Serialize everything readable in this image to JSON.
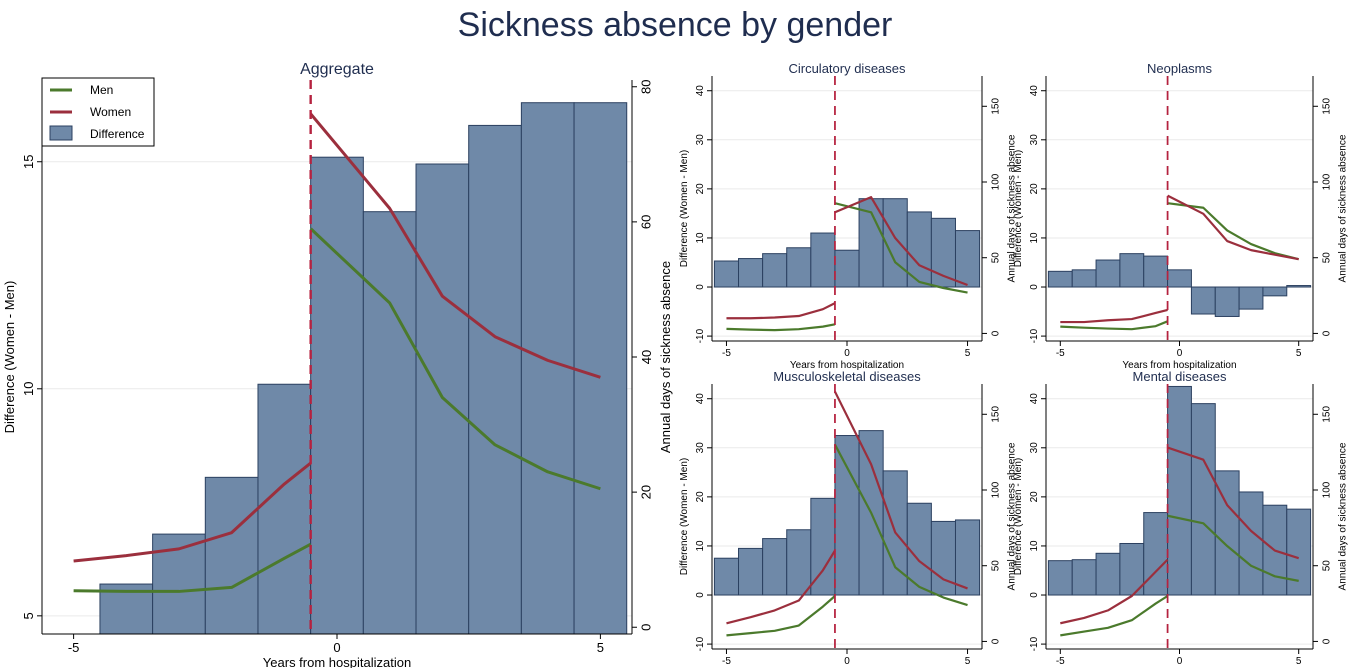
{
  "title": "Sickness absence by gender",
  "colors": {
    "men": "#4b7a2c",
    "women": "#9b2f3d",
    "bar": "#6f89a8",
    "bar_edge": "#2b4060",
    "vline": "#b5223f"
  },
  "legend": {
    "men": "Men",
    "women": "Women",
    "difference": "Difference"
  },
  "chart_data": [
    {
      "type": "bar+line",
      "title": "Aggregate",
      "xlabel": "Years from hospitalization",
      "ylabel_left": "Difference (Women - Men)",
      "ylabel_right": "Annual days of sickness absence",
      "xlim": [
        -5.6,
        5.6
      ],
      "ylim_left": [
        4.6,
        16.8
      ],
      "ylim_right": [
        -1,
        81
      ],
      "xticks": [
        -5,
        0,
        5
      ],
      "yticks_left": [
        5,
        10,
        15
      ],
      "yticks_right": [
        0,
        20,
        40,
        60,
        80
      ],
      "vline_x": -0.5,
      "legend_position": "top-left",
      "bars": {
        "x": [
          -4,
          -3,
          -2,
          -1,
          0,
          1,
          2,
          3,
          4,
          5
        ],
        "values": [
          5.7,
          6.8,
          8.05,
          10.1,
          15.1,
          13.9,
          14.95,
          15.8,
          16.3,
          16.3
        ]
      },
      "series": [
        {
          "name": "Men",
          "segments": [
            {
              "x": [
                -5,
                -4,
                -3,
                -2,
                -1,
                -0.5
              ],
              "y": [
                5.4,
                5.3,
                5.3,
                5.9,
                10.2,
                12.3
              ]
            },
            {
              "x": [
                -0.5,
                1,
                2,
                3,
                4,
                5
              ],
              "y": [
                59,
                48,
                34,
                27,
                23,
                20.5
              ]
            }
          ]
        },
        {
          "name": "Women",
          "segments": [
            {
              "x": [
                -5,
                -4,
                -3,
                -2,
                -1,
                -0.5
              ],
              "y": [
                9.8,
                10.6,
                11.6,
                14,
                21.2,
                24.3
              ]
            },
            {
              "x": [
                -0.5,
                1,
                2,
                3,
                4,
                5
              ],
              "y": [
                76,
                62,
                49,
                43,
                39.5,
                37
              ]
            }
          ]
        }
      ]
    },
    {
      "type": "bar+line",
      "title": "Circulatory diseases",
      "xlabel": "Years from hospitalization",
      "ylabel_left": "Difference (Women - Men)",
      "ylabel_right": "Annual days of sickness absence",
      "xlim": [
        -5.6,
        5.6
      ],
      "ylim_left": [
        -11,
        43
      ],
      "ylim_right": [
        -5,
        170
      ],
      "xticks": [
        -5,
        0,
        5
      ],
      "yticks_left": [
        -10,
        0,
        10,
        20,
        30,
        40
      ],
      "yticks_right": [
        0,
        50,
        100,
        150
      ],
      "vline_x": -0.5,
      "bars": {
        "x": [
          -5,
          -4,
          -3,
          -2,
          -1,
          0,
          1,
          2,
          3,
          4,
          5
        ],
        "values": [
          5.3,
          5.8,
          6.8,
          8,
          11,
          7.5,
          18,
          18,
          15.3,
          14,
          11.5
        ]
      },
      "series": [
        {
          "name": "Men",
          "segments": [
            {
              "x": [
                -5,
                -4,
                -3,
                -2,
                -1,
                -0.5
              ],
              "y": [
                3,
                2.5,
                2.2,
                2.8,
                4.5,
                6
              ]
            },
            {
              "x": [
                -0.5,
                1,
                2,
                3,
                4,
                5
              ],
              "y": [
                86,
                80,
                47,
                34,
                30,
                27
              ]
            }
          ]
        },
        {
          "name": "Women",
          "segments": [
            {
              "x": [
                -5,
                -4,
                -3,
                -2,
                -1,
                -0.5
              ],
              "y": [
                10,
                10,
                10.5,
                11.5,
                16,
                20
              ]
            },
            {
              "x": [
                -0.5,
                1,
                2,
                3,
                4,
                5
              ],
              "y": [
                80,
                90,
                63,
                45,
                38,
                32
              ]
            }
          ]
        }
      ]
    },
    {
      "type": "bar+line",
      "title": "Neoplasms",
      "xlabel": "Years from hospitalization",
      "ylabel_left": "Difference (Women - Men)",
      "ylabel_right": "Annual days of sickness absence",
      "xlim": [
        -5.6,
        5.6
      ],
      "ylim_left": [
        -11,
        43
      ],
      "ylim_right": [
        -5,
        170
      ],
      "xticks": [
        -5,
        0,
        5
      ],
      "yticks_left": [
        -10,
        0,
        10,
        20,
        30,
        40
      ],
      "yticks_right": [
        0,
        50,
        100,
        150
      ],
      "vline_x": -0.5,
      "bars": {
        "x": [
          -5,
          -4,
          -3,
          -2,
          -1,
          0,
          1,
          2,
          3,
          4,
          5
        ],
        "values": [
          3.2,
          3.5,
          5.5,
          6.8,
          6.3,
          3.5,
          -5.5,
          -6,
          -4.5,
          -1.8,
          0.3
        ]
      },
      "series": [
        {
          "name": "Men",
          "segments": [
            {
              "x": [
                -5,
                -4,
                -3,
                -2,
                -1,
                -0.5
              ],
              "y": [
                4.5,
                3.8,
                3.2,
                2.8,
                4.8,
                8
              ]
            },
            {
              "x": [
                -0.5,
                1,
                2,
                3,
                4,
                5
              ],
              "y": [
                86,
                83,
                68,
                59,
                53,
                49
              ]
            }
          ]
        },
        {
          "name": "Women",
          "segments": [
            {
              "x": [
                -5,
                -4,
                -3,
                -2,
                -1,
                -0.5
              ],
              "y": [
                7.5,
                7.5,
                8.7,
                9.5,
                13.5,
                15.5
              ]
            },
            {
              "x": [
                -0.5,
                1,
                2,
                3,
                4,
                5
              ],
              "y": [
                91,
                79,
                61,
                55,
                52,
                49
              ]
            }
          ]
        }
      ]
    },
    {
      "type": "bar+line",
      "title": "Musculoskeletal diseases",
      "xlabel": "Years from hospitalization",
      "ylabel_left": "Difference (Women - Men)",
      "ylabel_right": "Annual days of sickness absence",
      "xlim": [
        -5.6,
        5.6
      ],
      "ylim_left": [
        -11,
        43
      ],
      "ylim_right": [
        -5,
        170
      ],
      "xticks": [
        -5,
        0,
        5
      ],
      "yticks_left": [
        -10,
        0,
        10,
        20,
        30,
        40
      ],
      "yticks_right": [
        0,
        50,
        100,
        150
      ],
      "vline_x": -0.5,
      "bars": {
        "x": [
          -5,
          -4,
          -3,
          -2,
          -1,
          0,
          1,
          2,
          3,
          4,
          5
        ],
        "values": [
          7.5,
          9.5,
          11.5,
          13.3,
          19.7,
          32.5,
          33.5,
          25.3,
          18.7,
          15,
          15.3
        ]
      },
      "series": [
        {
          "name": "Men",
          "segments": [
            {
              "x": [
                -5,
                -4,
                -3,
                -2,
                -1,
                -0.5
              ],
              "y": [
                4,
                5.5,
                7,
                10.5,
                23,
                30
              ]
            },
            {
              "x": [
                -0.5,
                1,
                2,
                3,
                4,
                5
              ],
              "y": [
                130,
                85,
                49,
                36,
                29,
                24
              ]
            }
          ]
        },
        {
          "name": "Women",
          "segments": [
            {
              "x": [
                -5,
                -4,
                -3,
                -2,
                -1,
                -0.5
              ],
              "y": [
                12,
                16,
                20.5,
                27,
                47,
                60
              ]
            },
            {
              "x": [
                -0.5,
                1,
                2,
                3,
                4,
                5
              ],
              "y": [
                165,
                117,
                72,
                53,
                41,
                35
              ]
            }
          ]
        }
      ]
    },
    {
      "type": "bar+line",
      "title": "Mental diseases",
      "xlabel": "Years from hospitalization",
      "ylabel_left": "Difference (Women - Men)",
      "ylabel_right": "Annual days of sickness absence",
      "xlim": [
        -5.6,
        5.6
      ],
      "ylim_left": [
        -11,
        43
      ],
      "ylim_right": [
        -5,
        170
      ],
      "xticks": [
        -5,
        0,
        5
      ],
      "yticks_left": [
        -10,
        0,
        10,
        20,
        30,
        40
      ],
      "yticks_right": [
        0,
        50,
        100,
        150
      ],
      "vline_x": -0.5,
      "bars": {
        "x": [
          -5,
          -4,
          -3,
          -2,
          -1,
          0,
          1,
          2,
          3,
          4,
          5
        ],
        "values": [
          7,
          7.2,
          8.5,
          10.5,
          16.8,
          42.5,
          39,
          25.3,
          21,
          18.3,
          17.5
        ]
      },
      "series": [
        {
          "name": "Men",
          "segments": [
            {
              "x": [
                -5,
                -4,
                -3,
                -2,
                -1,
                -0.5
              ],
              "y": [
                4,
                6.5,
                9,
                14,
                25,
                30
              ]
            },
            {
              "x": [
                -0.5,
                1,
                2,
                3,
                4,
                5
              ],
              "y": [
                83,
                78,
                63,
                50,
                43,
                40
              ]
            }
          ]
        },
        {
          "name": "Women",
          "segments": [
            {
              "x": [
                -5,
                -4,
                -3,
                -2,
                -1,
                -0.5
              ],
              "y": [
                12,
                15.5,
                20.5,
                30,
                46,
                54
              ]
            },
            {
              "x": [
                -0.5,
                1,
                2,
                3,
                4,
                5
              ],
              "y": [
                128,
                120,
                90,
                73,
                60,
                55
              ]
            }
          ]
        }
      ]
    }
  ]
}
